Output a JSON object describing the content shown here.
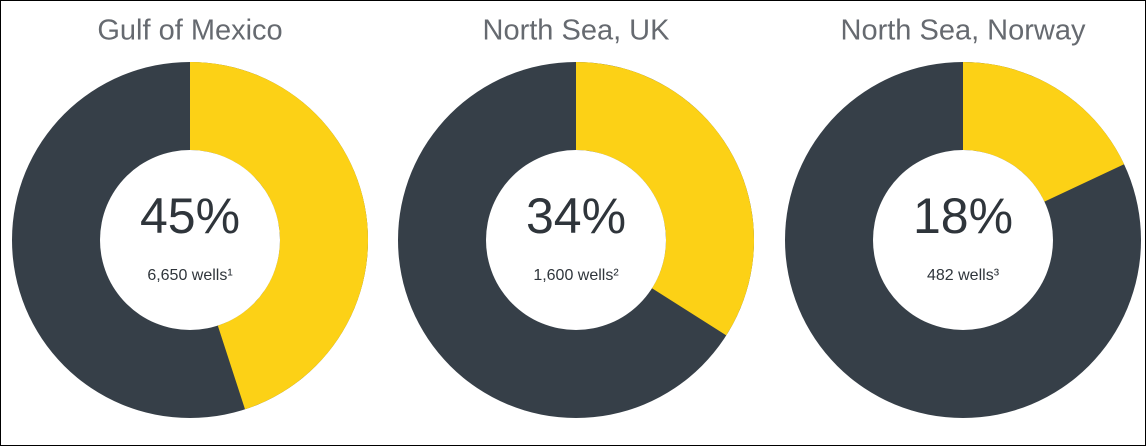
{
  "chart_data": [
    {
      "type": "donut",
      "title": "Gulf of Mexico",
      "values": [
        45
      ],
      "value_labels": [
        "45%"
      ],
      "subtitle": "6,650 wells¹",
      "color": "#fcd116",
      "rest_color": "#363f48"
    },
    {
      "type": "donut",
      "title": "North Sea, UK",
      "values": [
        34
      ],
      "value_labels": [
        "34%"
      ],
      "subtitle": "1,600 wells²",
      "color": "#fcd116",
      "rest_color": "#363f48"
    },
    {
      "type": "donut",
      "title": "North Sea, Norway",
      "values": [
        18
      ],
      "value_labels": [
        "18%"
      ],
      "subtitle": "482 wells³",
      "color": "#fcd116",
      "rest_color": "#363f48"
    }
  ]
}
